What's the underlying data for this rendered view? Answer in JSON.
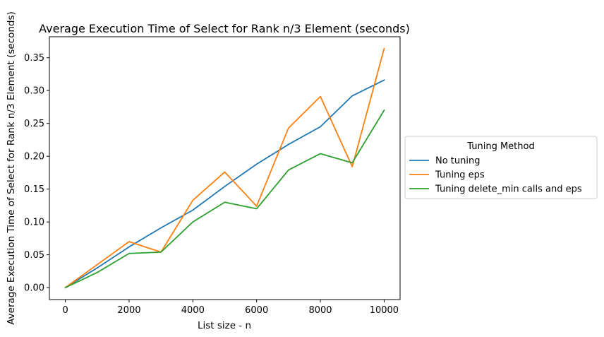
{
  "chart_data": {
    "type": "line",
    "title": "Average Execution Time of Select for Rank n/3 Element (seconds)",
    "xlabel": "List size - n",
    "ylabel": "Average Execution Time of Select for Rank n/3 Element (seconds)",
    "xlim": [
      -500,
      10500
    ],
    "ylim": [
      -0.0182,
      0.382
    ],
    "x_ticks": [
      0,
      2000,
      4000,
      6000,
      8000,
      10000
    ],
    "y_ticks": [
      0.0,
      0.05,
      0.1,
      0.15,
      0.2,
      0.25,
      0.3,
      0.35
    ],
    "x_tick_labels": [
      "0",
      "2000",
      "4000",
      "6000",
      "8000",
      "10000"
    ],
    "y_tick_labels": [
      "0.00",
      "0.05",
      "0.10",
      "0.15",
      "0.20",
      "0.25",
      "0.30",
      "0.35"
    ],
    "grid": false,
    "legend": {
      "title": "Tuning Method",
      "placement": "outside-right"
    },
    "x": [
      0,
      1000,
      2000,
      3000,
      4000,
      5000,
      6000,
      7000,
      8000,
      9000,
      10000
    ],
    "series": [
      {
        "name": "No tuning",
        "color": "#1f77b4",
        "values": [
          0.0,
          0.03,
          0.062,
          0.091,
          0.118,
          0.154,
          0.188,
          0.218,
          0.245,
          0.292,
          0.316
        ]
      },
      {
        "name": "Tuning eps",
        "color": "#ff7f0e",
        "values": [
          0.0,
          0.035,
          0.07,
          0.054,
          0.133,
          0.176,
          0.124,
          0.243,
          0.291,
          0.184,
          0.364
        ]
      },
      {
        "name": "Tuning delete_min calls and eps",
        "color": "#2ca02c",
        "values": [
          0.0,
          0.023,
          0.052,
          0.054,
          0.1,
          0.13,
          0.12,
          0.179,
          0.204,
          0.19,
          0.27
        ]
      }
    ]
  }
}
